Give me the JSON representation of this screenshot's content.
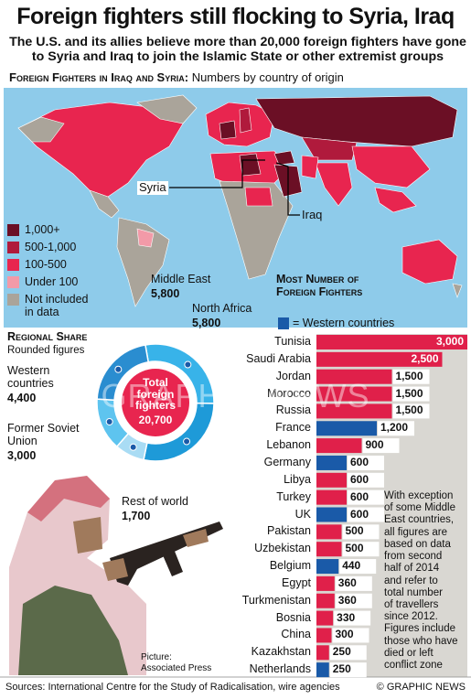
{
  "title": "Foreign fighters still flocking to Syria, Iraq",
  "subtitle": "The U.S. and its allies believe more than 20,000 foreign fighters have gone to Syria and Iraq to join the Islamic State or other extremist groups",
  "map": {
    "heading": "Foreign Fighters in Iraq and Syria:",
    "subheading": "Numbers by country of origin",
    "labels": [
      "Syria",
      "Iraq"
    ],
    "legend": [
      {
        "name": "1,000+",
        "color": "#6b0f25"
      },
      {
        "name": "500-1,000",
        "color": "#b01a3c"
      },
      {
        "name": "100-500",
        "color": "#e8254f"
      },
      {
        "name": "Under 100",
        "color": "#f29aa8"
      },
      {
        "name": "Not included in data",
        "color": "#aaa49a"
      }
    ]
  },
  "chart_data": [
    {
      "type": "donut",
      "title": "Regional Share",
      "subtitle": "Rounded figures",
      "center_label": "Total foreign fighters",
      "total": {
        "value": 20700,
        "label": "20,700"
      },
      "center_color": "#e8254f",
      "categories": [
        "Middle East",
        "North Africa",
        "Rest of world",
        "Former Soviet Union",
        "Western countries"
      ],
      "values": [
        5800,
        5800,
        1700,
        3000,
        4400
      ],
      "value_labels": [
        "5,800",
        "5,800",
        "1,700",
        "3,000",
        "4,400"
      ],
      "colors": [
        "#38b3e9",
        "#1e9ad8",
        "#a9dcf4",
        "#5ec4ef",
        "#2a8dd0"
      ]
    },
    {
      "type": "hbar",
      "title": "Most Number of Foreign Fighters",
      "legend": {
        "label": "= Western countries",
        "color": "#1a5aa8"
      },
      "categories": [
        "Tunisia",
        "Saudi Arabia",
        "Jordan",
        "Morocco",
        "Russia",
        "France",
        "Lebanon",
        "Germany",
        "Libya",
        "Turkey",
        "UK",
        "Pakistan",
        "Uzbekistan",
        "Belgium",
        "Egypt",
        "Turkmenistan",
        "Bosnia",
        "China",
        "Kazakhstan",
        "Netherlands"
      ],
      "values": [
        3000,
        2500,
        1500,
        1500,
        1500,
        1200,
        900,
        600,
        600,
        600,
        600,
        500,
        500,
        440,
        360,
        360,
        330,
        300,
        250,
        250
      ],
      "value_labels": [
        "3,000",
        "2,500",
        "1,500",
        "1,500",
        "1,500",
        "1,200",
        "900",
        "600",
        "600",
        "600",
        "600",
        "500",
        "500",
        "440",
        "360",
        "360",
        "330",
        "300",
        "250",
        "250"
      ],
      "colors": [
        "#e0204a",
        "#e0204a",
        "#e0204a",
        "#e0204a",
        "#e0204a",
        "#1a5aa8",
        "#e0204a",
        "#1a5aa8",
        "#e0204a",
        "#e0204a",
        "#1a5aa8",
        "#e0204a",
        "#e0204a",
        "#1a5aa8",
        "#e0204a",
        "#e0204a",
        "#e0204a",
        "#e0204a",
        "#e0204a",
        "#1a5aa8"
      ],
      "xlim": [
        0,
        3000
      ]
    }
  ],
  "note": [
    "With exception",
    "of some Middle",
    "East countries,",
    "all figures are",
    "based on data",
    "from second",
    "half of 2014",
    "and refer to",
    "total number",
    "of travellers",
    "since 2012.",
    "Figures include",
    "those who have",
    "died or left",
    "conflict zone"
  ],
  "credit": [
    "Picture:",
    "Associated Press"
  ],
  "watermark": "GRAPHIC NEWS",
  "source": "Sources: International Centre for the Study of Radicalisation, wire agencies",
  "copyright": "© GRAPHIC NEWS"
}
